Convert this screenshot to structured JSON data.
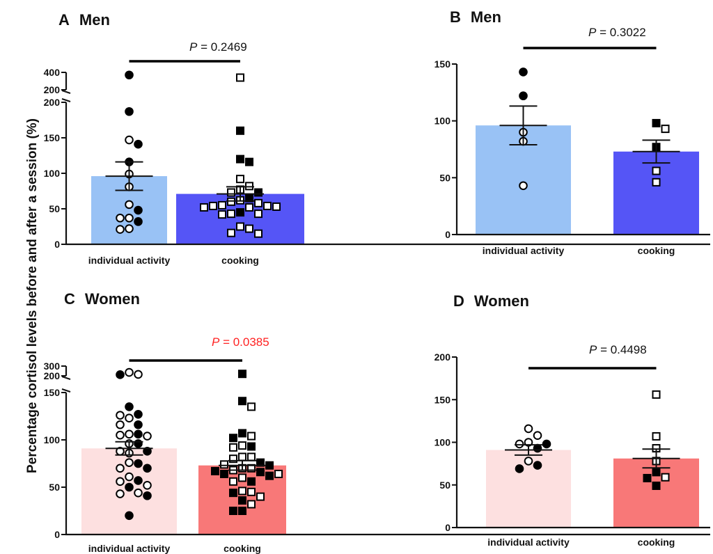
{
  "figure": {
    "ylabel": "Percentage cortisol levels before and after a session (%)"
  },
  "chart_data": [
    {
      "type": "bar",
      "panel": "A",
      "title": "Men",
      "categories": [
        "individual activity",
        "cooking"
      ],
      "bar_values": [
        96,
        71
      ],
      "sem": [
        20,
        10
      ],
      "bar_colors": [
        "#99c2f5",
        "#5555f6"
      ],
      "p_label": "P",
      "p_value": "= 0.2469",
      "p_color": "#111111",
      "ylim": [
        0,
        400
      ],
      "y_break": [
        200,
        400
      ],
      "ticks_lower": [
        0,
        50,
        100,
        150,
        200
      ],
      "ticks_upper": [
        200,
        400
      ],
      "points": [
        [
          {
            "y": 370,
            "filled": true
          },
          {
            "y": 187,
            "filled": true
          },
          {
            "y": 147,
            "filled": false
          },
          {
            "y": 141,
            "filled": true
          },
          {
            "y": 116,
            "filled": true
          },
          {
            "y": 99,
            "filled": false
          },
          {
            "y": 81,
            "filled": false
          },
          {
            "y": 56,
            "filled": false
          },
          {
            "y": 48,
            "filled": true
          },
          {
            "y": 37,
            "filled": false
          },
          {
            "y": 37,
            "filled": false
          },
          {
            "y": 32,
            "filled": true
          },
          {
            "y": 22,
            "filled": false
          },
          {
            "y": 21,
            "filled": false
          }
        ],
        [
          {
            "y": 340,
            "filled": false
          },
          {
            "y": 160,
            "filled": true
          },
          {
            "y": 120,
            "filled": true
          },
          {
            "y": 116,
            "filled": true
          },
          {
            "y": 92,
            "filled": false
          },
          {
            "y": 82,
            "filled": false
          },
          {
            "y": 77,
            "filled": false
          },
          {
            "y": 73,
            "filled": false
          },
          {
            "y": 73,
            "filled": true
          },
          {
            "y": 65,
            "filled": true
          },
          {
            "y": 62,
            "filled": false
          },
          {
            "y": 60,
            "filled": false
          },
          {
            "y": 58,
            "filled": false
          },
          {
            "y": 55,
            "filled": false
          },
          {
            "y": 54,
            "filled": false
          },
          {
            "y": 54,
            "filled": false
          },
          {
            "y": 53,
            "filled": false
          },
          {
            "y": 52,
            "filled": false
          },
          {
            "y": 52,
            "filled": false
          },
          {
            "y": 45,
            "filled": true
          },
          {
            "y": 43,
            "filled": false
          },
          {
            "y": 43,
            "filled": false
          },
          {
            "y": 42,
            "filled": false
          },
          {
            "y": 25,
            "filled": false
          },
          {
            "y": 22,
            "filled": false
          },
          {
            "y": 16,
            "filled": false
          },
          {
            "y": 15,
            "filled": false
          }
        ]
      ]
    },
    {
      "type": "bar",
      "panel": "B",
      "title": "Men",
      "categories": [
        "individual activity",
        "cooking"
      ],
      "bar_values": [
        96,
        73
      ],
      "sem": [
        17,
        10
      ],
      "bar_colors": [
        "#99c2f5",
        "#5555f6"
      ],
      "p_label": "P",
      "p_value": "= 0.3022",
      "p_color": "#111111",
      "ylim": [
        0,
        150
      ],
      "ticks": [
        0,
        50,
        100,
        150
      ],
      "points": [
        [
          {
            "y": 143,
            "filled": true
          },
          {
            "y": 122,
            "filled": true
          },
          {
            "y": 90,
            "filled": false
          },
          {
            "y": 82,
            "filled": false
          },
          {
            "y": 43,
            "filled": false
          }
        ],
        [
          {
            "y": 98,
            "filled": true
          },
          {
            "y": 93,
            "filled": false
          },
          {
            "y": 77,
            "filled": true
          },
          {
            "y": 56,
            "filled": false
          },
          {
            "y": 46,
            "filled": false
          }
        ]
      ]
    },
    {
      "type": "bar",
      "panel": "C",
      "title": "Women",
      "categories": [
        "individual activity",
        "cooking"
      ],
      "bar_values": [
        91,
        73
      ],
      "sem": [
        7,
        5
      ],
      "bar_colors": [
        "#fde0e0",
        "#f87878"
      ],
      "p_label": "P",
      "p_value": "= 0.0385",
      "p_color": "#ff2222",
      "ylim": [
        0,
        300
      ],
      "y_break": [
        150,
        300
      ],
      "ticks_lower": [
        0,
        50,
        100,
        150
      ],
      "ticks_upper": [
        200,
        300
      ],
      "points": [
        [
          {
            "y": 235,
            "filled": false
          },
          {
            "y": 215,
            "filled": false
          },
          {
            "y": 212,
            "filled": true
          },
          {
            "y": 135,
            "filled": true
          },
          {
            "y": 127,
            "filled": true
          },
          {
            "y": 126,
            "filled": false
          },
          {
            "y": 123,
            "filled": false
          },
          {
            "y": 116,
            "filled": true
          },
          {
            "y": 116,
            "filled": false
          },
          {
            "y": 106,
            "filled": false
          },
          {
            "y": 106,
            "filled": true
          },
          {
            "y": 105,
            "filled": false
          },
          {
            "y": 104,
            "filled": false
          },
          {
            "y": 96,
            "filled": false
          },
          {
            "y": 96,
            "filled": true
          },
          {
            "y": 88,
            "filled": false
          },
          {
            "y": 88,
            "filled": true
          },
          {
            "y": 86,
            "filled": false
          },
          {
            "y": 76,
            "filled": false
          },
          {
            "y": 75,
            "filled": true
          },
          {
            "y": 70,
            "filled": false
          },
          {
            "y": 70,
            "filled": true
          },
          {
            "y": 61,
            "filled": false
          },
          {
            "y": 57,
            "filled": true
          },
          {
            "y": 56,
            "filled": false
          },
          {
            "y": 52,
            "filled": false
          },
          {
            "y": 50,
            "filled": true
          },
          {
            "y": 44,
            "filled": false
          },
          {
            "y": 43,
            "filled": false
          },
          {
            "y": 41,
            "filled": true
          },
          {
            "y": 20,
            "filled": true
          }
        ],
        [
          {
            "y": 220,
            "filled": true
          },
          {
            "y": 141,
            "filled": true
          },
          {
            "y": 135,
            "filled": false
          },
          {
            "y": 107,
            "filled": true
          },
          {
            "y": 104,
            "filled": false
          },
          {
            "y": 102,
            "filled": true
          },
          {
            "y": 94,
            "filled": false
          },
          {
            "y": 93,
            "filled": true
          },
          {
            "y": 92,
            "filled": false
          },
          {
            "y": 82,
            "filled": false
          },
          {
            "y": 82,
            "filled": false
          },
          {
            "y": 80,
            "filled": false
          },
          {
            "y": 76,
            "filled": true
          },
          {
            "y": 74,
            "filled": false
          },
          {
            "y": 73,
            "filled": true
          },
          {
            "y": 70,
            "filled": false
          },
          {
            "y": 70,
            "filled": false
          },
          {
            "y": 68,
            "filled": false
          },
          {
            "y": 67,
            "filled": true
          },
          {
            "y": 66,
            "filled": true
          },
          {
            "y": 64,
            "filled": true
          },
          {
            "y": 64,
            "filled": false
          },
          {
            "y": 62,
            "filled": true
          },
          {
            "y": 60,
            "filled": false
          },
          {
            "y": 56,
            "filled": true
          },
          {
            "y": 56,
            "filled": false
          },
          {
            "y": 46,
            "filled": false
          },
          {
            "y": 45,
            "filled": false
          },
          {
            "y": 44,
            "filled": true
          },
          {
            "y": 40,
            "filled": false
          },
          {
            "y": 36,
            "filled": true
          },
          {
            "y": 32,
            "filled": false
          },
          {
            "y": 25,
            "filled": true
          },
          {
            "y": 25,
            "filled": true
          }
        ]
      ]
    },
    {
      "type": "bar",
      "panel": "D",
      "title": "Women",
      "categories": [
        "individual activity",
        "cooking"
      ],
      "bar_values": [
        91,
        81
      ],
      "sem": [
        6,
        11
      ],
      "bar_colors": [
        "#fde0e0",
        "#f87878"
      ],
      "p_label": "P",
      "p_value": "= 0.4498",
      "p_color": "#111111",
      "ylim": [
        0,
        200
      ],
      "ticks": [
        0,
        50,
        100,
        150,
        200
      ],
      "points": [
        [
          {
            "y": 116,
            "filled": false
          },
          {
            "y": 108,
            "filled": false
          },
          {
            "y": 100,
            "filled": false
          },
          {
            "y": 98,
            "filled": false
          },
          {
            "y": 98,
            "filled": true
          },
          {
            "y": 93,
            "filled": true
          },
          {
            "y": 78,
            "filled": false
          },
          {
            "y": 73,
            "filled": true
          },
          {
            "y": 69,
            "filled": true
          }
        ],
        [
          {
            "y": 156,
            "filled": false
          },
          {
            "y": 107,
            "filled": false
          },
          {
            "y": 93,
            "filled": false
          },
          {
            "y": 78,
            "filled": false
          },
          {
            "y": 65,
            "filled": true
          },
          {
            "y": 59,
            "filled": false
          },
          {
            "y": 58,
            "filled": true
          },
          {
            "y": 49,
            "filled": true
          }
        ]
      ]
    }
  ]
}
